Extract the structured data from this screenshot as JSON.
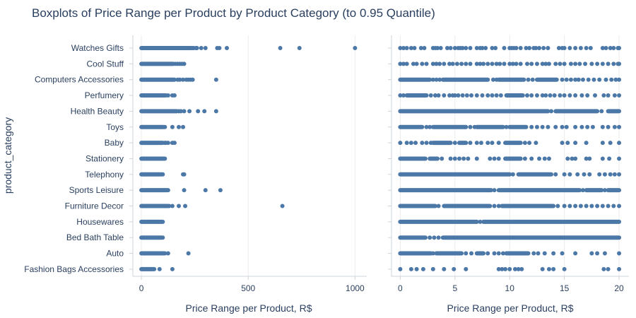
{
  "chart_data": {
    "type": "scatter",
    "title": "Boxplots of Price Range per Product by Product Category (to 0.95 Quantile)",
    "ylabel": "product_category",
    "categories": [
      "Watches Gifts",
      "Cool Stuff",
      "Computers Accessories",
      "Perfumery",
      "Health Beauty",
      "Toys",
      "Baby",
      "Stationery",
      "Telephony",
      "Sports Leisure",
      "Furniture Decor",
      "Housewares",
      "Bed Bath Table",
      "Auto",
      "Fashion Bags Accessories"
    ],
    "color": "#4c78a8",
    "panels": [
      {
        "xlabel": "Price Range per Product, R$",
        "xlim": [
          -40,
          1055
        ],
        "xticks": [
          0,
          500,
          1000
        ],
        "xtick_labels": [
          "0",
          "500",
          "1000"
        ],
        "series": [
          {
            "category": "Watches Gifts",
            "dense_max": 230,
            "outliers": [
              235,
              240,
              245,
              255,
              260,
              280,
              300,
              355,
              365,
              400,
              650,
              740,
              1000
            ]
          },
          {
            "category": "Cool Stuff",
            "dense_max": 150,
            "outliers": [
              160,
              170,
              180,
              190,
              200
            ]
          },
          {
            "category": "Computers Accessories",
            "dense_max": 155,
            "outliers": [
              170,
              180,
              195,
              210,
              220,
              230,
              240,
              350
            ]
          },
          {
            "category": "Perfumery",
            "dense_max": 100,
            "outliers": [
              105,
              110,
              115,
              125,
              145,
              155
            ]
          },
          {
            "category": "Health Beauty",
            "dense_max": 165,
            "outliers": [
              175,
              185,
              200,
              225,
              265,
              295,
              350
            ]
          },
          {
            "category": "Toys",
            "dense_max": 100,
            "outliers": [
              105,
              110,
              145,
              175,
              195
            ]
          },
          {
            "category": "Baby",
            "dense_max": 95,
            "outliers": [
              100,
              110,
              115,
              125,
              145,
              155
            ]
          },
          {
            "category": "Stationery",
            "dense_max": 95,
            "outliers": [
              100,
              105,
              110
            ]
          },
          {
            "category": "Telephony",
            "dense_max": 95,
            "outliers": [
              100,
              195,
              200
            ]
          },
          {
            "category": "Sports Leisure",
            "dense_max": 115,
            "outliers": [
              120,
              125,
              200,
              300,
              370
            ]
          },
          {
            "category": "Furniture Decor",
            "dense_max": 120,
            "outliers": [
              125,
              130,
              145,
              175,
              205,
              660
            ]
          },
          {
            "category": "Housewares",
            "dense_max": 95,
            "outliers": [
              100
            ]
          },
          {
            "category": "Bed Bath Table",
            "dense_max": 90,
            "outliers": [
              95,
              100
            ]
          },
          {
            "category": "Auto",
            "dense_max": 100,
            "outliers": [
              105,
              110,
              125,
              220
            ]
          },
          {
            "category": "Fashion Bags Accessories",
            "dense_max": 55,
            "outliers": [
              60,
              85,
              145
            ]
          }
        ]
      },
      {
        "xlabel": "Price Range per Product, R$",
        "xlim": [
          -0.8,
          20.9
        ],
        "xticks": [
          0,
          5,
          10,
          15,
          20
        ],
        "xtick_labels": [
          "0",
          "5",
          "10",
          "15",
          "20"
        ],
        "series": [
          {
            "category": "Watches Gifts",
            "points": [
              0,
              0.3,
              0.6,
              1,
              1.3,
              1.9,
              2.2,
              3,
              3.2,
              3.4,
              3.7,
              4.3,
              4.6,
              5,
              5.3,
              5.5,
              5.7,
              6,
              6.4,
              7,
              7.3,
              7.5,
              7.8,
              8.4,
              8.7,
              9.5,
              10,
              10.2,
              10.4,
              10.6,
              11,
              11.5,
              11.8,
              12.2,
              12.4,
              12.7,
              13.1,
              13.5,
              14.5,
              14.8,
              15,
              15.5,
              16,
              16.5,
              17,
              17.4,
              18.5,
              18.8,
              19.2,
              19.5,
              19.9,
              20
            ]
          },
          {
            "category": "Cool Stuff",
            "points": [
              0,
              0.3,
              0.6,
              1.2,
              1.5,
              2,
              2.4,
              3,
              3.3,
              3.6,
              4,
              4.5,
              4.8,
              5.2,
              5.6,
              6,
              6.4,
              7,
              7.3,
              7.6,
              8,
              8.4,
              8.8,
              9.1,
              9.5,
              10,
              10.3,
              10.6,
              11,
              11.6,
              12,
              12.5,
              13,
              13.3,
              13.6,
              14.2,
              14.6,
              15,
              15.6,
              16,
              16.4,
              16.9,
              17.5,
              18,
              18.5,
              19,
              19.5,
              19.9,
              20
            ]
          },
          {
            "category": "Computers Accessories",
            "dense": [
              [
                0,
                2.7
              ],
              [
                3.9,
                8
              ],
              [
                9,
                11.3
              ],
              [
                12.5,
                14.3
              ]
            ],
            "points": [
              3,
              3.3,
              3.6,
              8.5,
              8.8,
              11.7,
              12.1,
              14.8,
              15.2,
              15.6,
              16,
              16.3,
              16.7,
              17.2,
              17.7,
              18.2,
              18.8,
              19.3,
              19.7,
              20
            ]
          },
          {
            "category": "Perfumery",
            "dense": [
              [
                0.6,
                2.4
              ],
              [
                9.7,
                11.2
              ]
            ],
            "points": [
              0,
              0.3,
              2.8,
              3.2,
              3.5,
              4,
              4.5,
              4.8,
              5,
              5.3,
              5.7,
              6.1,
              6.5,
              7,
              7.5,
              8,
              8.4,
              8.8,
              9.2,
              11.6,
              12,
              12.5,
              13,
              13.3,
              13.7,
              14.1,
              14.6,
              15,
              15.5,
              16,
              16.6,
              17.1,
              17.8,
              18.6,
              19,
              19.6,
              20
            ]
          },
          {
            "category": "Health Beauty",
            "dense": [
              [
                0,
                13.5
              ],
              [
                14.2,
                18
              ],
              [
                19,
                20
              ]
            ],
            "points": [
              13.8,
              18.4
            ]
          },
          {
            "category": "Toys",
            "dense": [
              [
                0,
                2
              ],
              [
                3,
                6
              ],
              [
                7,
                9.4
              ],
              [
                10,
                11.5
              ]
            ],
            "points": [
              2.4,
              2.7,
              6.4,
              6.8,
              9.7,
              12,
              12.5,
              13,
              13.5,
              14.2,
              14.8,
              15.2,
              16,
              16.6,
              17.1,
              17.6,
              18.5,
              19,
              19.6,
              20
            ]
          },
          {
            "category": "Baby",
            "dense": [
              [
                3,
                4.6
              ],
              [
                5.4,
                6
              ],
              [
                9.6,
                11
              ]
            ],
            "points": [
              0,
              0.6,
              1,
              1.4,
              2,
              2.4,
              2.8,
              5,
              6.4,
              7,
              7.4,
              8,
              8.4,
              9,
              11.4,
              11.8,
              12.4,
              14.8,
              15.3,
              16,
              17,
              18.5,
              19.2,
              20
            ]
          },
          {
            "category": "Stationery",
            "dense": [
              [
                0,
                2.3
              ],
              [
                2.7,
                3.4
              ],
              [
                9.6,
                11
              ]
            ],
            "points": [
              3.8,
              4.6,
              5,
              5.4,
              5.8,
              6.2,
              7,
              8.2,
              8.6,
              9,
              11.4,
              12,
              12.7,
              13.2,
              13.6,
              15.3,
              15.7,
              16,
              17,
              17.3,
              18.5,
              19.1,
              20
            ]
          },
          {
            "category": "Telephony",
            "dense": [
              [
                0,
                10
              ],
              [
                10.8,
                13.8
              ]
            ],
            "points": [
              10.3,
              14.2,
              15,
              15.5,
              16.2,
              16.8,
              17.3,
              18.2,
              18.7,
              19.2,
              19.6,
              20
            ]
          },
          {
            "category": "Sports Leisure",
            "dense": [
              [
                0,
                8.3
              ],
              [
                9,
                16.4
              ],
              [
                17,
                18.4
              ],
              [
                19,
                20
              ]
            ],
            "points": [
              8.6,
              16.7,
              18.7
            ]
          },
          {
            "category": "Furniture Decor",
            "dense": [
              [
                0,
                3.2
              ],
              [
                4,
                8.2
              ],
              [
                9.3,
                14
              ]
            ],
            "points": [
              3.5,
              8.6,
              9,
              14.4,
              15,
              15.5,
              16,
              16.5,
              17,
              17.5,
              18,
              18.5,
              19,
              19.5,
              20
            ]
          },
          {
            "category": "Housewares",
            "dense": [
              [
                0,
                7
              ],
              [
                7.6,
                20
              ]
            ],
            "points": [
              7.3
            ]
          },
          {
            "category": "Bed Bath Table",
            "dense": [
              [
                0,
                2.3
              ],
              [
                3.9,
                20
              ]
            ],
            "points": [
              2.7,
              3.1,
              3.5
            ]
          },
          {
            "category": "Auto",
            "dense": [
              [
                0,
                2.8
              ],
              [
                3.3,
                5.6
              ],
              [
                7,
                7.6
              ],
              [
                9.7,
                11.7
              ]
            ],
            "points": [
              3,
              6,
              6.5,
              8,
              8.6,
              9,
              9.4,
              12.2,
              12.6,
              13.2,
              14,
              14.8,
              16,
              17.5,
              18,
              18.7,
              20
            ]
          },
          {
            "category": "Fashion Bags Accessories",
            "points": [
              0,
              1,
              1.5,
              2.1,
              3,
              4,
              4.9,
              6,
              9,
              9.3,
              9.6,
              10,
              10.5,
              10.8,
              11.1,
              13,
              13.6,
              14,
              15,
              18.6,
              19,
              20
            ]
          }
        ]
      }
    ]
  }
}
